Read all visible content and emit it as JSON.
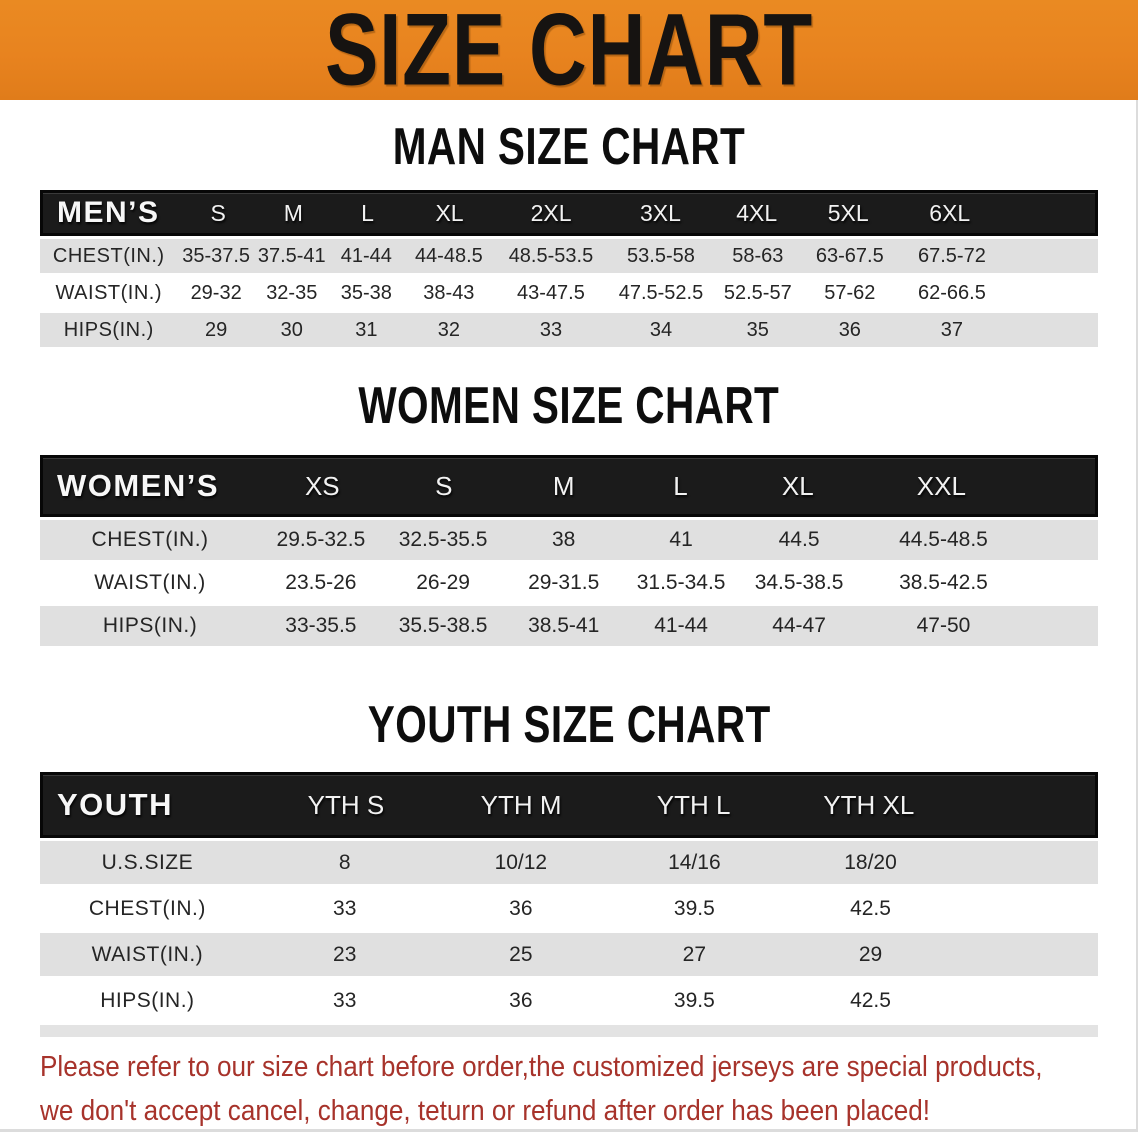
{
  "banner": {
    "title": "SIZE CHART",
    "bg_color": "#e8831f",
    "text_color": "#161311"
  },
  "colors": {
    "table_header_bar": "#1b1b1b",
    "row_stripe": "#e0e0e0",
    "disclaimer_text": "#a7332b"
  },
  "sections": [
    {
      "id": "men",
      "title": "MAN SIZE CHART",
      "table": {
        "header_label": "MEN’S",
        "columns": [
          "S",
          "M",
          "L",
          "XL",
          "2XL",
          "3XL",
          "4XL",
          "5XL",
          "6XL"
        ],
        "rows": [
          {
            "label": "CHEST(IN.)",
            "values": [
              "35-37.5",
              "37.5-41",
              "41-44",
              "44-48.5",
              "48.5-53.5",
              "53.5-58",
              "58-63",
              "63-67.5",
              "67.5-72"
            ]
          },
          {
            "label": "WAIST(IN.)",
            "values": [
              "29-32",
              "32-35",
              "35-38",
              "38-43",
              "43-47.5",
              "47.5-52.5",
              "52.5-57",
              "57-62",
              "62-66.5"
            ]
          },
          {
            "label": "HIPS(IN.)",
            "values": [
              "29",
              "30",
              "31",
              "32",
              "33",
              "34",
              "35",
              "36",
              "37"
            ]
          }
        ]
      }
    },
    {
      "id": "women",
      "title": "WOMEN SIZE CHART",
      "table": {
        "header_label": "WOMEN’S",
        "columns": [
          "XS",
          "S",
          "M",
          "L",
          "XL",
          "XXL"
        ],
        "rows": [
          {
            "label": "CHEST(IN.)",
            "values": [
              "29.5-32.5",
              "32.5-35.5",
              "38",
              "41",
              "44.5",
              "44.5-48.5"
            ]
          },
          {
            "label": "WAIST(IN.)",
            "values": [
              "23.5-26",
              "26-29",
              "29-31.5",
              "31.5-34.5",
              "34.5-38.5",
              "38.5-42.5"
            ]
          },
          {
            "label": "HIPS(IN.)",
            "values": [
              "33-35.5",
              "35.5-38.5",
              "38.5-41",
              "41-44",
              "44-47",
              "47-50"
            ]
          }
        ]
      }
    },
    {
      "id": "youth",
      "title": "YOUTH SIZE CHART",
      "table": {
        "header_label": "YOUTH",
        "columns": [
          "YTH S",
          "YTH M",
          "YTH L",
          "YTH XL"
        ],
        "rows": [
          {
            "label": "U.S.SIZE",
            "values": [
              "8",
              "10/12",
              "14/16",
              "18/20"
            ]
          },
          {
            "label": "CHEST(IN.)",
            "values": [
              "33",
              "36",
              "39.5",
              "42.5"
            ]
          },
          {
            "label": "WAIST(IN.)",
            "values": [
              "23",
              "25",
              "27",
              "29"
            ]
          },
          {
            "label": "HIPS(IN.)",
            "values": [
              "33",
              "36",
              "39.5",
              "42.5"
            ]
          }
        ]
      }
    }
  ],
  "disclaimer": {
    "lines": [
      "Please refer to our size chart before order,the customized jerseys are special products,",
      "we don't accept cancel, change, teturn or refund after order has been placed!"
    ]
  }
}
